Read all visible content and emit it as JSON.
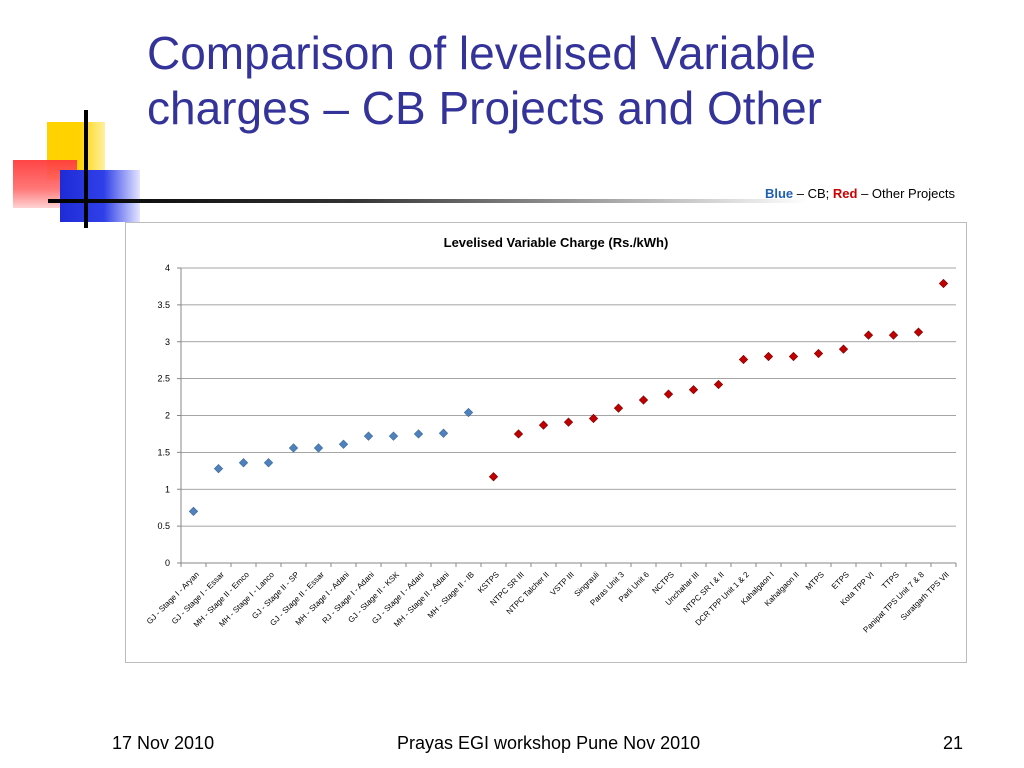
{
  "slide": {
    "title_line1": "Comparison of levelised Variable",
    "title_line2": "charges – CB Projects and Other",
    "legend_note": {
      "blue_word": "Blue",
      "mid_text": " – CB; ",
      "red_word": "Red",
      "end_text": " – Other Projects"
    },
    "footer": {
      "date": "17 Nov 2010",
      "center": "Prayas EGI workshop Pune Nov 2010",
      "page": "21"
    },
    "colors": {
      "title": "#333399",
      "cb_marker": "#4f81bd",
      "other_marker": "#c00000"
    }
  },
  "chart_data": {
    "type": "scatter",
    "title": "Levelised Variable Charge (Rs./kWh)",
    "xlabel": "",
    "ylabel": "",
    "ylim": [
      0,
      4
    ],
    "yticks": [
      0,
      0.5,
      1,
      1.5,
      2,
      2.5,
      3,
      3.5,
      4
    ],
    "grid": true,
    "categories": [
      "GJ - Stage I - Aryan",
      "GJ - Stage I - Essar",
      "MH - Stage II - Emco",
      "MH - Stage I - Lanco",
      "GJ - Stage II - SP",
      "GJ - Stage II - Essar",
      "MH - Stage I - Adani",
      "RJ - Stage I - Adani",
      "GJ - Stage II - KSK",
      "GJ - Stage I - Adani",
      "MH - Stage II - Adani",
      "MH - Stage II - IB",
      "KSTPS",
      "NTPC SR III",
      "NTPC Talcher II",
      "VSTP III",
      "Singrauli",
      "Paras Unit 3",
      "Parli Unit 6",
      "NCTPS",
      "Unchahar III",
      "NTPC SR I & II",
      "DCR TPP Unit 1 & 2",
      "Kahalgaon I",
      "Kahalgaon II",
      "MTPS",
      "ETPS",
      "Kota TPP VI",
      "TTPS",
      "Panipat TPS Unit 7 & 8",
      "Suratgarh TPS VII"
    ],
    "series": [
      {
        "group": "cb",
        "color": "#4f81bd",
        "points": [
          {
            "category": "GJ - Stage I - Aryan",
            "value": 0.7
          },
          {
            "category": "GJ - Stage I - Essar",
            "value": 1.28
          },
          {
            "category": "MH - Stage II - Emco",
            "value": 1.36
          },
          {
            "category": "MH - Stage I - Lanco",
            "value": 1.36
          },
          {
            "category": "GJ - Stage II - SP",
            "value": 1.56
          },
          {
            "category": "GJ - Stage II - Essar",
            "value": 1.56
          },
          {
            "category": "MH - Stage I - Adani",
            "value": 1.61
          },
          {
            "category": "RJ - Stage I - Adani",
            "value": 1.72
          },
          {
            "category": "GJ - Stage II - KSK",
            "value": 1.72
          },
          {
            "category": "GJ - Stage I - Adani",
            "value": 1.75
          },
          {
            "category": "MH - Stage II - Adani",
            "value": 1.76
          },
          {
            "category": "MH - Stage II - IB",
            "value": 2.04
          }
        ]
      },
      {
        "group": "other",
        "color": "#c00000",
        "points": [
          {
            "category": "KSTPS",
            "value": 1.17
          },
          {
            "category": "NTPC SR III",
            "value": 1.75
          },
          {
            "category": "NTPC Talcher II",
            "value": 1.87
          },
          {
            "category": "VSTP III",
            "value": 1.91
          },
          {
            "category": "Singrauli",
            "value": 1.96
          },
          {
            "category": "Paras Unit 3",
            "value": 2.1
          },
          {
            "category": "Parli Unit 6",
            "value": 2.21
          },
          {
            "category": "NCTPS",
            "value": 2.29
          },
          {
            "category": "Unchahar III",
            "value": 2.35
          },
          {
            "category": "NTPC SR I & II",
            "value": 2.42
          },
          {
            "category": "DCR TPP Unit 1 & 2",
            "value": 2.76
          },
          {
            "category": "Kahalgaon I",
            "value": 2.8
          },
          {
            "category": "Kahalgaon II",
            "value": 2.8
          },
          {
            "category": "MTPS",
            "value": 2.84
          },
          {
            "category": "ETPS",
            "value": 2.9
          },
          {
            "category": "Kota TPP VI",
            "value": 3.09
          },
          {
            "category": "TTPS",
            "value": 3.09
          },
          {
            "category": "Panipat TPS Unit 7 & 8",
            "value": 3.13
          },
          {
            "category": "Suratgarh TPS VII",
            "value": 3.79
          }
        ]
      }
    ]
  }
}
